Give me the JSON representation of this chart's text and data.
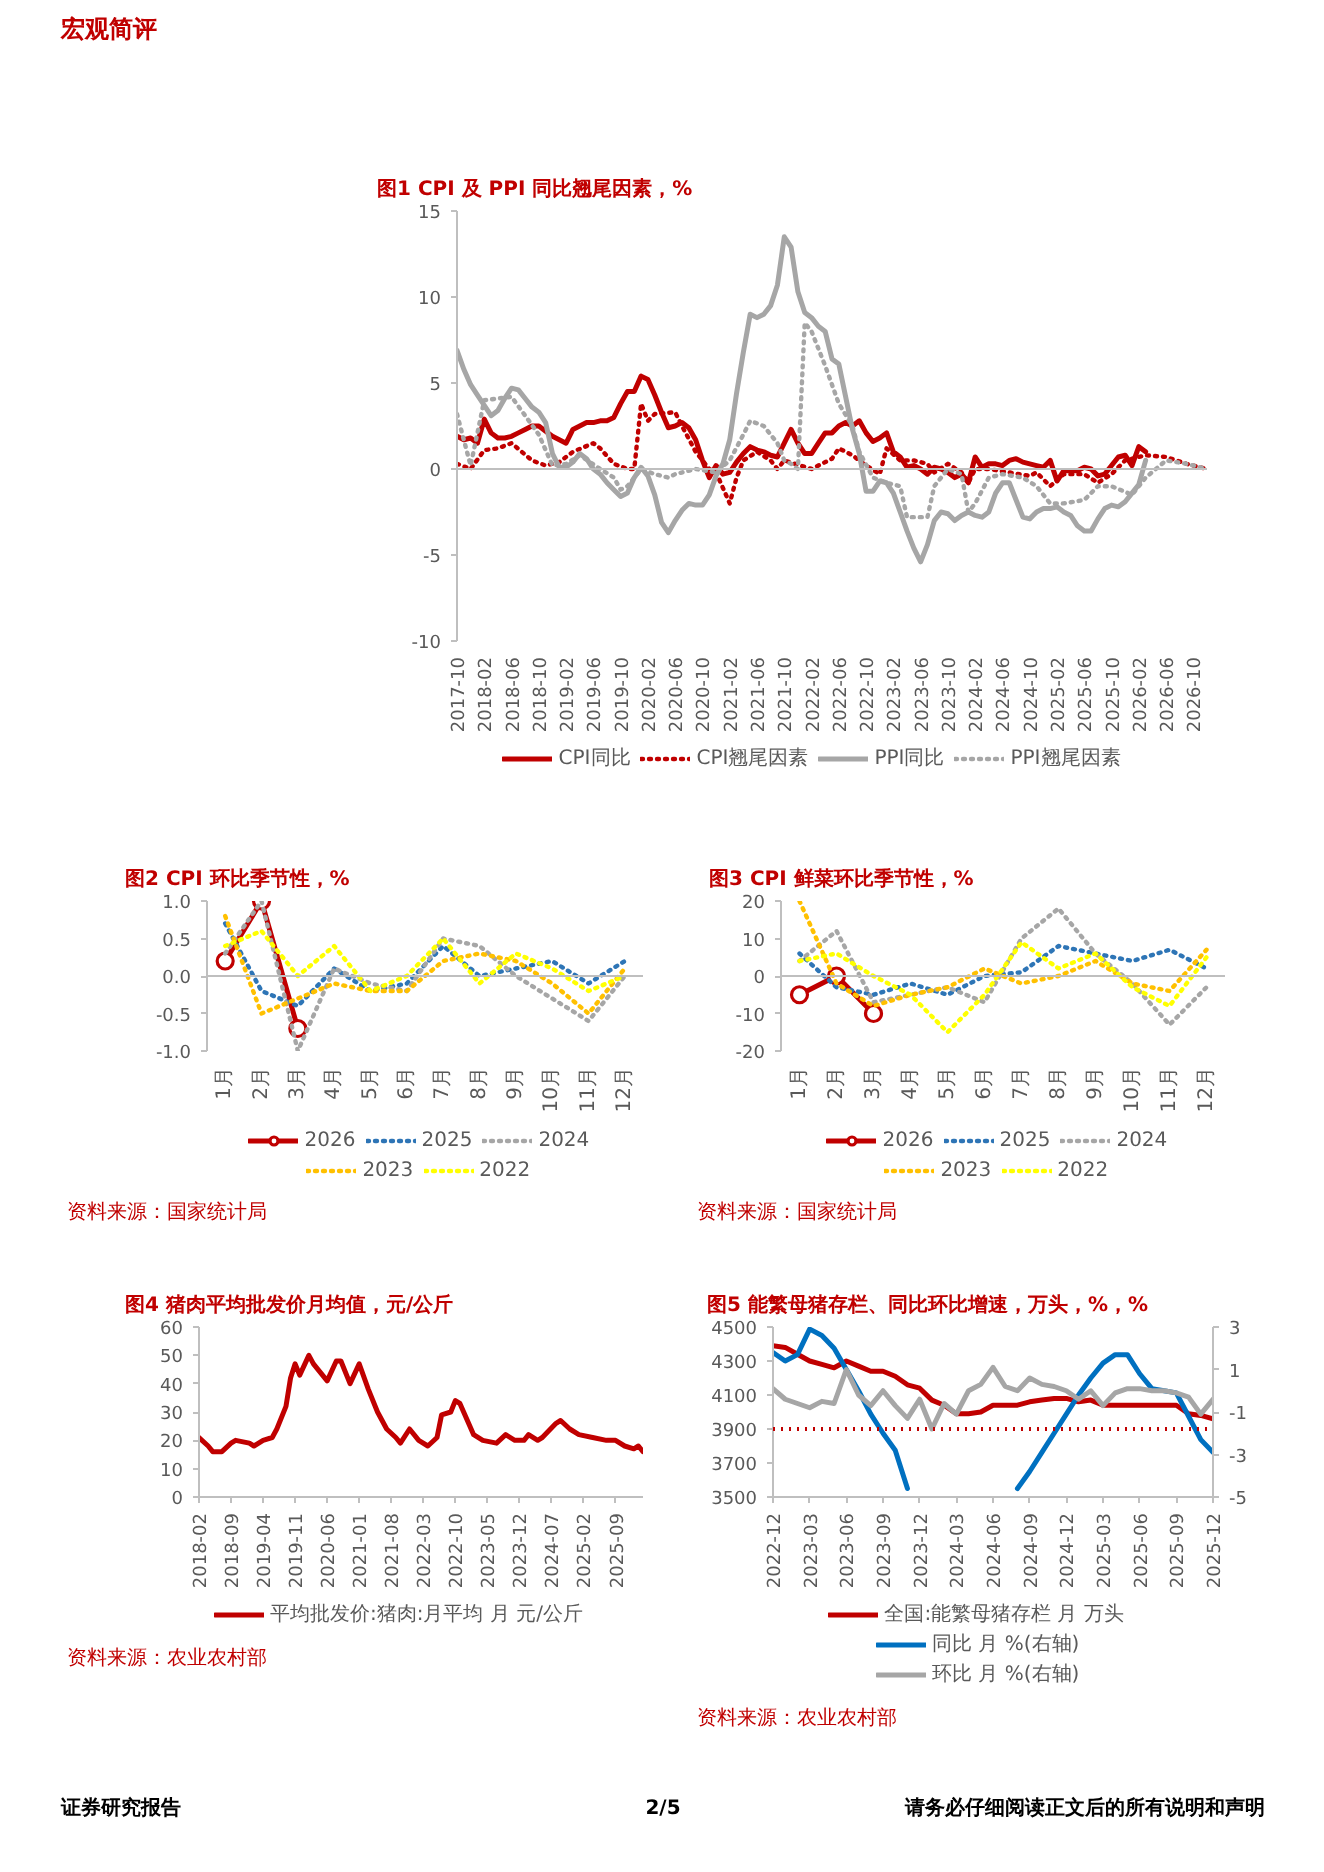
{
  "chart_data": [
    {
      "type": "other",
      "annotations": [
        "宏观简评"
      ]
    },
    {
      "type": "line",
      "title": "图1 CPI 及 PPI 同比翘尾因素，%",
      "grid": false,
      "legend": "bottom",
      "xlim": [
        "2017-10",
        "2026-12"
      ],
      "ylim": [
        -10,
        15
      ],
      "yticks": [
        -10,
        -5,
        0,
        5,
        10,
        15
      ],
      "ref_lines": [
        {
          "axis": "y",
          "value": 0,
          "color": "#bfbfbf",
          "line_style": "solid"
        }
      ],
      "xticks": [
        "2017-10",
        "2018-02",
        "2018-06",
        "2018-10",
        "2019-02",
        "2019-06",
        "2019-10",
        "2020-02",
        "2020-06",
        "2020-10",
        "2021-02",
        "2021-06",
        "2021-10",
        "2022-02",
        "2022-06",
        "2022-10",
        "2023-02",
        "2023-06",
        "2023-10",
        "2024-02",
        "2024-06",
        "2024-10",
        "2025-02",
        "2025-06",
        "2025-10",
        "2026-02",
        "2026-06",
        "2026-10"
      ],
      "x": [
        "2017-10",
        "2017-11",
        "2017-12",
        "2018-01",
        "2018-02",
        "2018-03",
        "2018-04",
        "2018-05",
        "2018-06",
        "2018-07",
        "2018-08",
        "2018-09",
        "2018-10",
        "2018-11",
        "2018-12",
        "2019-01",
        "2019-02",
        "2019-03",
        "2019-04",
        "2019-05",
        "2019-06",
        "2019-07",
        "2019-08",
        "2019-09",
        "2019-10",
        "2019-11",
        "2019-12",
        "2020-01",
        "2020-02",
        "2020-03",
        "2020-04",
        "2020-05",
        "2020-06",
        "2020-07",
        "2020-08",
        "2020-09",
        "2020-10",
        "2020-11",
        "2020-12",
        "2021-01",
        "2021-02",
        "2021-03",
        "2021-04",
        "2021-05",
        "2021-06",
        "2021-07",
        "2021-08",
        "2021-09",
        "2021-10",
        "2021-11",
        "2021-12",
        "2022-01",
        "2022-02",
        "2022-03",
        "2022-04",
        "2022-05",
        "2022-06",
        "2022-07",
        "2022-08",
        "2022-09",
        "2022-10",
        "2022-11",
        "2022-12",
        "2023-01",
        "2023-02",
        "2023-03",
        "2023-04",
        "2023-05",
        "2023-06",
        "2023-07",
        "2023-08",
        "2023-09",
        "2023-10",
        "2023-11",
        "2023-12",
        "2024-01",
        "2024-02",
        "2024-03",
        "2024-04",
        "2024-05",
        "2024-06",
        "2024-07",
        "2024-08",
        "2024-09",
        "2024-10",
        "2024-11",
        "2024-12",
        "2025-01",
        "2025-02",
        "2025-03",
        "2025-04",
        "2025-05",
        "2025-06",
        "2025-07",
        "2025-08",
        "2025-09",
        "2025-10",
        "2025-11",
        "2025-12",
        "2026-01",
        "2026-02",
        "2026-03"
      ],
      "series": [
        {
          "name": "CPI同比",
          "color": "#c00000",
          "line_style": "solid",
          "values": [
            1.9,
            1.7,
            1.8,
            1.5,
            2.9,
            2.1,
            1.8,
            1.8,
            1.9,
            2.1,
            2.3,
            2.5,
            2.5,
            2.2,
            1.9,
            1.7,
            1.5,
            2.3,
            2.5,
            2.7,
            2.7,
            2.8,
            2.8,
            3.0,
            3.8,
            4.5,
            4.5,
            5.4,
            5.2,
            4.3,
            3.3,
            2.4,
            2.5,
            2.7,
            2.4,
            1.7,
            0.5,
            -0.5,
            0.2,
            -0.3,
            -0.2,
            0.4,
            0.9,
            1.3,
            1.1,
            1.0,
            0.8,
            0.7,
            1.5,
            2.3,
            1.5,
            0.9,
            0.9,
            1.5,
            2.1,
            2.1,
            2.5,
            2.7,
            2.5,
            2.8,
            2.1,
            1.6,
            1.8,
            2.1,
            1.0,
            0.7,
            0.1,
            0.2,
            0.0,
            -0.3,
            0.1,
            0.0,
            -0.2,
            -0.5,
            -0.3,
            -0.8,
            0.7,
            0.1,
            0.3,
            0.3,
            0.2,
            0.5,
            0.6,
            0.4,
            0.3,
            0.2,
            0.1,
            0.5,
            -0.7,
            -0.1,
            -0.1,
            -0.1,
            0.1,
            0.0,
            -0.4,
            -0.3,
            0.2,
            0.7,
            0.8,
            0.2,
            1.3,
            1.0
          ]
        },
        {
          "name": "CPI翘尾因素",
          "color": "#c00000",
          "line_style": "dotted",
          "x": [
            "2017-10",
            "2017-12",
            "2018-02",
            "2018-04",
            "2018-06",
            "2018-09",
            "2018-11",
            "2019-01",
            "2019-03",
            "2019-06",
            "2019-07",
            "2019-09",
            "2019-11",
            "2019-12",
            "2020-01",
            "2020-02",
            "2020-03",
            "2020-06",
            "2020-07",
            "2020-09",
            "2020-11",
            "2020-12",
            "2021-02",
            "2021-03",
            "2021-04",
            "2021-06",
            "2021-08",
            "2021-09",
            "2021-10",
            "2022-02",
            "2022-05",
            "2022-06",
            "2022-08",
            "2022-10",
            "2022-12",
            "2023-01",
            "2023-03",
            "2023-05",
            "2023-07",
            "2023-08",
            "2023-10",
            "2023-12",
            "2024-01",
            "2024-02",
            "2024-04",
            "2024-07",
            "2024-10",
            "2024-11",
            "2025-01",
            "2025-03",
            "2025-06",
            "2025-08",
            "2025-10",
            "2025-12",
            "2026-03",
            "2026-06",
            "2026-09",
            "2026-12"
          ],
          "values": [
            0.3,
            0.0,
            1.1,
            1.2,
            1.5,
            0.5,
            0.2,
            0.4,
            1.0,
            1.5,
            1.2,
            0.3,
            0.0,
            0.0,
            3.8,
            2.8,
            3.2,
            3.3,
            2.5,
            1.0,
            0.0,
            -0.2,
            -2.0,
            -0.5,
            0.5,
            1.0,
            0.5,
            0.0,
            0.5,
            0.0,
            0.6,
            1.2,
            0.8,
            0.2,
            -0.3,
            1.2,
            0.5,
            0.5,
            0.3,
            -0.2,
            0.3,
            -0.2,
            -0.8,
            0.0,
            0.0,
            -0.2,
            -0.4,
            -0.2,
            -1.0,
            -0.3,
            -0.3,
            -0.8,
            -0.3,
            0.5,
            0.8,
            0.7,
            0.3,
            0.0
          ]
        },
        {
          "name": "PPI同比",
          "color": "#a6a6a6",
          "line_style": "solid",
          "values": [
            6.9,
            5.8,
            4.9,
            4.3,
            3.7,
            3.1,
            3.4,
            4.1,
            4.7,
            4.6,
            4.1,
            3.6,
            3.3,
            2.7,
            0.9,
            0.1,
            0.1,
            0.4,
            0.9,
            0.6,
            0.0,
            -0.3,
            -0.8,
            -1.2,
            -1.6,
            -1.4,
            -0.5,
            0.1,
            -0.4,
            -1.5,
            -3.1,
            -3.7,
            -3.0,
            -2.4,
            -2.0,
            -2.1,
            -2.1,
            -1.5,
            -0.4,
            0.3,
            1.7,
            4.4,
            6.8,
            9.0,
            8.8,
            9.0,
            9.5,
            10.7,
            13.5,
            12.9,
            10.3,
            9.1,
            8.8,
            8.3,
            8.0,
            6.4,
            6.1,
            4.2,
            2.3,
            0.9,
            -1.3,
            -1.3,
            -0.7,
            -0.8,
            -1.4,
            -2.5,
            -3.6,
            -4.6,
            -5.4,
            -4.4,
            -3.0,
            -2.5,
            -2.6,
            -3.0,
            -2.7,
            -2.5,
            -2.7,
            -2.8,
            -2.5,
            -1.4,
            -0.8,
            -0.8,
            -1.8,
            -2.8,
            -2.9,
            -2.5,
            -2.3,
            -2.3,
            -2.2,
            -2.5,
            -2.7,
            -3.3,
            -3.6,
            -3.6,
            -2.9,
            -2.3,
            -2.1,
            -2.2,
            -1.9,
            -1.4,
            -0.9,
            0.5
          ]
        },
        {
          "name": "PPI翘尾因素",
          "color": "#a6a6a6",
          "line_style": "dotted",
          "x": [
            "2017-10",
            "2017-12",
            "2018-02",
            "2018-06",
            "2018-10",
            "2018-12",
            "2019-02",
            "2019-04",
            "2019-07",
            "2019-09",
            "2019-10",
            "2019-11",
            "2020-01",
            "2020-03",
            "2020-05",
            "2020-06",
            "2020-09",
            "2020-12",
            "2021-02",
            "2021-04",
            "2021-05",
            "2021-07",
            "2021-09",
            "2021-10",
            "2021-11",
            "2021-12",
            "2022-01",
            "2022-02",
            "2022-04",
            "2022-06",
            "2022-08",
            "2022-09",
            "2022-11",
            "2023-01",
            "2023-03",
            "2023-04",
            "2023-07",
            "2023-08",
            "2023-10",
            "2023-12",
            "2024-01",
            "2024-02",
            "2024-04",
            "2024-06",
            "2024-09",
            "2024-11",
            "2025-01",
            "2025-03",
            "2025-06",
            "2025-08",
            "2025-10",
            "2026-01",
            "2026-03",
            "2026-06",
            "2026-09",
            "2026-12"
          ],
          "values": [
            3.2,
            0.2,
            4.0,
            4.2,
            2.0,
            0.2,
            0.3,
            0.8,
            0.0,
            -0.5,
            -1.2,
            -1.0,
            0.0,
            -0.3,
            -0.5,
            -0.3,
            0.0,
            -0.2,
            0.5,
            2.0,
            2.8,
            2.5,
            1.5,
            0.5,
            0.3,
            0.0,
            8.5,
            8.0,
            6.0,
            3.8,
            2.5,
            1.0,
            -0.5,
            -0.8,
            -1.0,
            -2.8,
            -2.8,
            -1.0,
            0.0,
            -0.3,
            -2.5,
            -2.0,
            -0.5,
            -0.3,
            -0.5,
            -1.0,
            -2.0,
            -2.0,
            -1.8,
            -1.0,
            -1.0,
            -1.5,
            -0.5,
            0.5,
            0.3,
            0.0
          ]
        }
      ]
    },
    {
      "type": "line",
      "title": "图2 CPI 环比季节性，%",
      "grid": false,
      "legend": "bottom",
      "categories": [
        "1月",
        "2月",
        "3月",
        "4月",
        "5月",
        "6月",
        "7月",
        "8月",
        "9月",
        "10月",
        "11月",
        "12月"
      ],
      "ylim": [
        -1,
        1
      ],
      "yticks": [
        {
          "value": -1,
          "label": "-1.0"
        },
        {
          "value": -0.5,
          "label": "-0.5"
        },
        {
          "value": 0,
          "label": "0.0"
        },
        {
          "value": 0.5,
          "label": "0.5"
        },
        {
          "value": 1,
          "label": "1.0"
        }
      ],
      "ref_lines": [
        {
          "axis": "y",
          "value": 0,
          "color": "#bfbfbf",
          "line_style": "solid"
        }
      ],
      "series": [
        {
          "name": "2026",
          "color": "#c00000",
          "line_style": "solid",
          "marker": "circle",
          "values": [
            0.2,
            1.0,
            -0.7,
            null,
            null,
            null,
            null,
            null,
            null,
            null,
            null,
            null
          ]
        },
        {
          "name": "2025",
          "color": "#2e75b6",
          "line_style": "dotted",
          "values": [
            0.7,
            -0.2,
            -0.4,
            0.1,
            -0.2,
            -0.1,
            0.4,
            0.0,
            0.1,
            0.2,
            -0.1,
            0.2
          ]
        },
        {
          "name": "2024",
          "color": "#a6a6a6",
          "line_style": "dotted",
          "values": [
            0.3,
            1.0,
            -1.0,
            0.1,
            -0.1,
            -0.2,
            0.5,
            0.4,
            0.0,
            -0.3,
            -0.6,
            0.0
          ]
        },
        {
          "name": "2023",
          "color": "#ffc000",
          "line_style": "dotted",
          "values": [
            0.8,
            -0.5,
            -0.3,
            -0.1,
            -0.2,
            -0.2,
            0.2,
            0.3,
            0.2,
            -0.1,
            -0.5,
            0.1
          ]
        },
        {
          "name": "2022",
          "color": "#ffff00",
          "line_style": "dotted",
          "values": [
            0.4,
            0.6,
            0.0,
            0.4,
            -0.2,
            0.0,
            0.5,
            -0.1,
            0.3,
            0.1,
            -0.2,
            0.0
          ]
        }
      ],
      "annotations": [
        "资料来源：国家统计局"
      ]
    },
    {
      "type": "line",
      "title": "图3 CPI 鲜菜环比季节性，%",
      "grid": false,
      "legend": "bottom",
      "categories": [
        "1月",
        "2月",
        "3月",
        "4月",
        "5月",
        "6月",
        "7月",
        "8月",
        "9月",
        "10月",
        "11月",
        "12月"
      ],
      "ylim": [
        -20,
        20
      ],
      "yticks": [
        -20,
        -10,
        0,
        10,
        20
      ],
      "ref_lines": [
        {
          "axis": "y",
          "value": 0,
          "color": "#bfbfbf",
          "line_style": "solid"
        }
      ],
      "series": [
        {
          "name": "2026",
          "color": "#c00000",
          "line_style": "solid",
          "marker": "circle",
          "values": [
            -5,
            0,
            -10,
            null,
            null,
            null,
            null,
            null,
            null,
            null,
            null,
            null
          ]
        },
        {
          "name": "2025",
          "color": "#2e75b6",
          "line_style": "dotted",
          "values": [
            6,
            -3,
            -5,
            -2,
            -5,
            0,
            1,
            8,
            6,
            4,
            7,
            2
          ]
        },
        {
          "name": "2024",
          "color": "#a6a6a6",
          "line_style": "dotted",
          "values": [
            4,
            12,
            -7,
            -5,
            -3,
            -7,
            10,
            18,
            6,
            -2,
            -13,
            -3
          ]
        },
        {
          "name": "2023",
          "color": "#ffc000",
          "line_style": "dotted",
          "values": [
            20,
            -2,
            -8,
            -5,
            -3,
            2,
            -2,
            0,
            4,
            -2,
            -4,
            7
          ]
        },
        {
          "name": "2022",
          "color": "#ffff00",
          "line_style": "dotted",
          "values": [
            4,
            6,
            0,
            -5,
            -15,
            -5,
            9,
            2,
            6,
            -3,
            -8,
            5
          ]
        }
      ],
      "annotations": [
        "资料来源：国家统计局"
      ]
    },
    {
      "type": "line",
      "title": "图4 猪肉平均批发价月均值，元/公斤",
      "grid": false,
      "legend": "bottom",
      "xlim": [
        "2018-02",
        "2026-03"
      ],
      "ylim": [
        0,
        60
      ],
      "yticks": [
        0,
        10,
        20,
        30,
        40,
        50,
        60
      ],
      "xticks": [
        "2018-02",
        "2018-09",
        "2019-04",
        "2019-11",
        "2020-06",
        "2021-01",
        "2021-08",
        "2022-03",
        "2022-10",
        "2023-05",
        "2023-12",
        "2024-07",
        "2025-02",
        "2025-09"
      ],
      "x": [
        "2018-02",
        "2018-04",
        "2018-05",
        "2018-07",
        "2018-09",
        "2018-10",
        "2019-01",
        "2019-02",
        "2019-04",
        "2019-06",
        "2019-07",
        "2019-09",
        "2019-10",
        "2019-11",
        "2019-12",
        "2020-02",
        "2020-03",
        "2020-06",
        "2020-08",
        "2020-09",
        "2020-11",
        "2021-01",
        "2021-03",
        "2021-05",
        "2021-07",
        "2021-09",
        "2021-10",
        "2021-12",
        "2022-02",
        "2022-04",
        "2022-06",
        "2022-07",
        "2022-09",
        "2022-10",
        "2022-11",
        "2023-02",
        "2023-04",
        "2023-07",
        "2023-09",
        "2023-11",
        "2024-01",
        "2024-02",
        "2024-04",
        "2024-05",
        "2024-08",
        "2024-09",
        "2024-11",
        "2025-01",
        "2025-04",
        "2025-07",
        "2025-09",
        "2025-11",
        "2026-01",
        "2026-02",
        "2026-03"
      ],
      "series": [
        {
          "name": "平均批发价:猪肉:月平均 月 元/公斤",
          "color": "#c00000",
          "line_style": "solid",
          "values": [
            21,
            18,
            16,
            16,
            19,
            20,
            19,
            18,
            20,
            21,
            24,
            32,
            42,
            47,
            43,
            50,
            47,
            41,
            48,
            48,
            40,
            47,
            38,
            30,
            24,
            21,
            19,
            24,
            20,
            18,
            21,
            29,
            30,
            34,
            33,
            22,
            20,
            19,
            22,
            20,
            20,
            22,
            20,
            21,
            26,
            27,
            24,
            22,
            21,
            20,
            20,
            18,
            17,
            18,
            16
          ]
        }
      ],
      "annotations": [
        "资料来源：农业农村部"
      ]
    },
    {
      "type": "line",
      "title": "图5 能繁母猪存栏、同比环比增速，万头，%，%",
      "grid": false,
      "legend": "bottom",
      "xlim": [
        "2022-12",
        "2025-12"
      ],
      "ylim": [
        3500,
        4500
      ],
      "yticks": [
        3500,
        3700,
        3900,
        4100,
        4300,
        4500
      ],
      "y2lim": [
        -5,
        3
      ],
      "y2ticks": [
        -5,
        -3,
        -1,
        1,
        3
      ],
      "xticks": [
        "2022-12",
        "2023-03",
        "2023-06",
        "2023-09",
        "2023-12",
        "2024-03",
        "2024-06",
        "2024-09",
        "2024-12",
        "2025-03",
        "2025-06",
        "2025-09",
        "2025-12"
      ],
      "x": [
        "2022-12",
        "2023-01",
        "2023-02",
        "2023-03",
        "2023-04",
        "2023-05",
        "2023-06",
        "2023-07",
        "2023-08",
        "2023-09",
        "2023-10",
        "2023-11",
        "2023-12",
        "2024-01",
        "2024-02",
        "2024-03",
        "2024-04",
        "2024-05",
        "2024-06",
        "2024-07",
        "2024-08",
        "2024-09",
        "2024-10",
        "2024-11",
        "2024-12",
        "2025-01",
        "2025-02",
        "2025-03",
        "2025-04",
        "2025-05",
        "2025-06",
        "2025-07",
        "2025-08",
        "2025-09",
        "2025-10",
        "2025-11",
        "2025-12"
      ],
      "ref_lines": [
        {
          "axis": "y",
          "value": 3900,
          "color": "#c00000",
          "line_style": "dotted"
        }
      ],
      "series": [
        {
          "name": "全国:能繁母猪存栏 月 万头",
          "color": "#c00000",
          "line_style": "solid",
          "values": [
            4390,
            4380,
            4340,
            4300,
            4280,
            4260,
            4300,
            4270,
            4240,
            4240,
            4210,
            4160,
            4140,
            4070,
            4040,
            3990,
            3990,
            4000,
            4040,
            4040,
            4040,
            4060,
            4070,
            4080,
            4080,
            4060,
            4070,
            4040,
            4040,
            4040,
            4040,
            4040,
            4040,
            4040,
            3990,
            3980,
            3960
          ]
        },
        {
          "name": "同比 月 %(右轴)",
          "color": "#0070c0",
          "line_style": "solid",
          "axis": "y2",
          "values": [
            1.8,
            1.4,
            1.7,
            2.9,
            2.6,
            2.0,
            1.0,
            0.0,
            -1.1,
            -2.0,
            -2.8,
            -4.6,
            null,
            null,
            null,
            null,
            null,
            null,
            null,
            null,
            -4.6,
            -3.8,
            -2.9,
            -2.0,
            -1.1,
            -0.2,
            0.6,
            1.3,
            1.7,
            1.7,
            0.8,
            0.1,
            0.0,
            -0.1,
            -1.2,
            -2.3,
            -2.9
          ]
        },
        {
          "name": "环比 月 %(右轴)",
          "color": "#a6a6a6",
          "line_style": "solid",
          "axis": "y2",
          "values": [
            0.1,
            -0.4,
            -0.6,
            -0.8,
            -0.5,
            -0.6,
            1.0,
            -0.2,
            -0.7,
            0.0,
            -0.7,
            -1.3,
            -0.4,
            -1.8,
            -0.6,
            -1.1,
            0.0,
            0.3,
            1.1,
            0.2,
            0.0,
            0.6,
            0.3,
            0.2,
            0.0,
            -0.4,
            0.0,
            -0.7,
            -0.1,
            0.1,
            0.1,
            0.0,
            0.0,
            -0.1,
            -0.3,
            -1.1,
            -0.4
          ]
        }
      ],
      "annotations": [
        "资料来源：农业农村部"
      ]
    },
    {
      "type": "other",
      "annotations": [
        "证券研究报告",
        "2/5",
        "请务必仔细阅读正文后的所有说明和声明"
      ]
    }
  ]
}
